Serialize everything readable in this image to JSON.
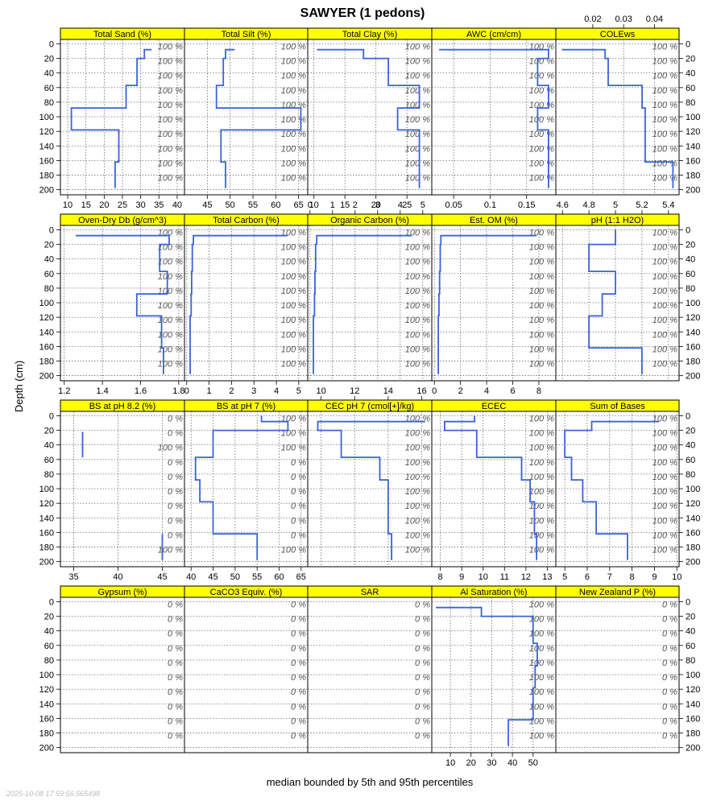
{
  "title": "SAWYER (1 pedons)",
  "ylabel": "Depth (cm)",
  "xlabel": "median bounded by 5th and 95th percentiles",
  "timestamp": "2025-10-08 17:59:56.565498",
  "colors": {
    "strip": "#ffff00",
    "line": "#3a63d8",
    "grid": "#555555",
    "pct_text": "#555555"
  },
  "depth_ticks": [
    0,
    20,
    40,
    60,
    80,
    100,
    120,
    140,
    160,
    180,
    200
  ],
  "pct_depths": [
    0,
    20,
    40,
    60,
    80,
    100,
    120,
    140,
    160,
    180
  ],
  "chart_data": [
    {
      "type": "line",
      "title": "Total Sand (%)",
      "xlim": [
        8,
        42
      ],
      "xticks": [
        10,
        15,
        20,
        25,
        30,
        35,
        40
      ],
      "xtick_axis": "bottom",
      "pct_labels": [
        "100 %",
        "100 %",
        "100 %",
        "100 %",
        "100 %",
        "100 %",
        "100 %",
        "100 %",
        "100 %",
        "100 %"
      ],
      "profile": [
        [
          33,
          8
        ],
        [
          31,
          8
        ],
        [
          31,
          20
        ],
        [
          29,
          20
        ],
        [
          29,
          57
        ],
        [
          26,
          57
        ],
        [
          26,
          88
        ],
        [
          11,
          88
        ],
        [
          11,
          118
        ],
        [
          24,
          118
        ],
        [
          24,
          162
        ],
        [
          23,
          162
        ],
        [
          23,
          198
        ]
      ]
    },
    {
      "type": "line",
      "title": "Total Silt (%)",
      "xlim": [
        40,
        67
      ],
      "xticks": [
        45,
        50,
        55,
        60,
        65
      ],
      "xtick_axis": "bottom",
      "pct_labels": [
        "100 %",
        "100 %",
        "100 %",
        "100 %",
        "100 %",
        "100 %",
        "100 %",
        "100 %",
        "100 %",
        "100 %"
      ],
      "profile": [
        [
          51,
          8
        ],
        [
          49,
          8
        ],
        [
          49,
          20
        ],
        [
          48.5,
          20
        ],
        [
          48.5,
          57
        ],
        [
          47,
          57
        ],
        [
          47,
          88
        ],
        [
          65.5,
          88
        ],
        [
          65.5,
          118
        ],
        [
          48,
          118
        ],
        [
          48,
          162
        ],
        [
          49,
          162
        ],
        [
          49,
          198
        ]
      ]
    },
    {
      "type": "line",
      "title": "Total Clay (%)",
      "xlim": [
        9,
        29
      ],
      "xticks": [
        10,
        15,
        20,
        25
      ],
      "xtick_axis": "bottom",
      "pct_labels": [
        "100 %",
        "100 %",
        "100 %",
        "100 %",
        "100 %",
        "100 %",
        "100 %",
        "100 %",
        "100 %",
        "100 %"
      ],
      "profile": [
        [
          10.5,
          8
        ],
        [
          18,
          8
        ],
        [
          18,
          20
        ],
        [
          22,
          20
        ],
        [
          22,
          57
        ],
        [
          27,
          57
        ],
        [
          27,
          88
        ],
        [
          23.5,
          88
        ],
        [
          23.5,
          118
        ],
        [
          27,
          118
        ],
        [
          27,
          162
        ],
        [
          27,
          162
        ],
        [
          27,
          198
        ]
      ]
    },
    {
      "type": "line",
      "title": "AWC (cm/cm)",
      "xlim": [
        0.02,
        0.19
      ],
      "xticks": [
        0.05,
        0.1,
        0.15
      ],
      "xtick_axis": "bottom",
      "pct_labels": [
        "100 %",
        "100 %",
        "100 %",
        "100 %",
        "100 %",
        "100 %",
        "100 %",
        "100 %",
        "100 %",
        "100 %"
      ],
      "profile": [
        [
          0.03,
          8
        ],
        [
          0.18,
          8
        ],
        [
          0.18,
          20
        ],
        [
          0.165,
          20
        ],
        [
          0.165,
          57
        ],
        [
          0.18,
          57
        ],
        [
          0.18,
          88
        ],
        [
          0.165,
          88
        ],
        [
          0.165,
          118
        ],
        [
          0.18,
          118
        ],
        [
          0.18,
          198
        ]
      ]
    },
    {
      "type": "line",
      "title": "COLEws",
      "xlim": [
        0.008,
        0.048
      ],
      "xticks": [
        0.02,
        0.03,
        0.04
      ],
      "xtick_axis": "top",
      "pct_labels": [
        "100 %",
        "100 %",
        "100 %",
        "100 %",
        "100 %",
        "100 %",
        "100 %",
        "100 %",
        "100 %",
        "100 %"
      ],
      "profile": [
        [
          0.01,
          8
        ],
        [
          0.024,
          8
        ],
        [
          0.024,
          20
        ],
        [
          0.025,
          20
        ],
        [
          0.025,
          57
        ],
        [
          0.036,
          57
        ],
        [
          0.036,
          88
        ],
        [
          0.037,
          88
        ],
        [
          0.037,
          162
        ],
        [
          0.046,
          162
        ],
        [
          0.046,
          198
        ]
      ]
    },
    {
      "type": "line",
      "title": "Oven-Dry Db (g/cm^3)",
      "xlim": [
        1.18,
        1.83
      ],
      "xticks": [
        1.2,
        1.4,
        1.6,
        1.8
      ],
      "xtick_axis": "bottom",
      "pct_labels": [
        "100 %",
        "100 %",
        "100 %",
        "100 %",
        "100 %",
        "100 %",
        "100 %",
        "100 %",
        "100 %",
        "100 %"
      ],
      "profile": [
        [
          1.26,
          8
        ],
        [
          1.75,
          8
        ],
        [
          1.75,
          20
        ],
        [
          1.7,
          20
        ],
        [
          1.7,
          57
        ],
        [
          1.74,
          57
        ],
        [
          1.74,
          88
        ],
        [
          1.58,
          88
        ],
        [
          1.58,
          118
        ],
        [
          1.71,
          118
        ],
        [
          1.71,
          162
        ],
        [
          1.72,
          162
        ],
        [
          1.72,
          198
        ]
      ]
    },
    {
      "type": "line",
      "title": "Total Carbon (%)",
      "xlim": [
        -0.1,
        5.4
      ],
      "xticks": [
        0,
        1,
        2,
        3,
        4,
        5
      ],
      "xtick_axis": "bottom",
      "pct_labels": [
        "100 %",
        "100 %",
        "100 %",
        "100 %",
        "100 %",
        "100 %",
        "100 %",
        "100 %",
        "100 %",
        "100 %"
      ],
      "profile": [
        [
          4.5,
          8
        ],
        [
          0.3,
          8
        ],
        [
          0.3,
          20
        ],
        [
          0.25,
          20
        ],
        [
          0.25,
          57
        ],
        [
          0.22,
          57
        ],
        [
          0.22,
          88
        ],
        [
          0.2,
          88
        ],
        [
          0.2,
          118
        ],
        [
          0.15,
          118
        ],
        [
          0.15,
          198
        ]
      ]
    },
    {
      "type": "line",
      "title": "Organic Carbon (%)",
      "xlim": [
        -0.1,
        5.4
      ],
      "xticks": [
        0,
        1,
        2,
        3,
        4,
        5
      ],
      "xtick_axis": "top",
      "pct_labels": [
        "100 %",
        "100 %",
        "100 %",
        "100 %",
        "100 %",
        "100 %",
        "100 %",
        "100 %",
        "100 %",
        "100 %"
      ],
      "profile": [
        [
          4.5,
          8
        ],
        [
          0.3,
          8
        ],
        [
          0.3,
          20
        ],
        [
          0.25,
          20
        ],
        [
          0.25,
          57
        ],
        [
          0.22,
          57
        ],
        [
          0.22,
          88
        ],
        [
          0.2,
          88
        ],
        [
          0.2,
          118
        ],
        [
          0.15,
          118
        ],
        [
          0.15,
          198
        ]
      ]
    },
    {
      "type": "line",
      "title": "Est. OM (%)",
      "xlim": [
        -0.2,
        9.3
      ],
      "xticks": [
        0,
        2,
        4,
        6,
        8
      ],
      "xtick_axis": "bottom",
      "pct_labels": [
        "100 %",
        "100 %",
        "100 %",
        "100 %",
        "100 %",
        "100 %",
        "100 %",
        "100 %",
        "100 %",
        "100 %"
      ],
      "profile": [
        [
          7.8,
          8
        ],
        [
          0.5,
          8
        ],
        [
          0.5,
          20
        ],
        [
          0.45,
          20
        ],
        [
          0.45,
          57
        ],
        [
          0.4,
          57
        ],
        [
          0.4,
          88
        ],
        [
          0.35,
          88
        ],
        [
          0.35,
          118
        ],
        [
          0.3,
          118
        ],
        [
          0.3,
          198
        ]
      ]
    },
    {
      "type": "line",
      "title": "pH (1:1 H2O)",
      "xlim": [
        4.55,
        5.48
      ],
      "xticks": [
        4.6,
        4.8,
        5.0,
        5.2,
        5.4
      ],
      "xtick_axis": "top",
      "pct_labels": [
        "100 %",
        "100 %",
        "100 %",
        "100 %",
        "100 %",
        "100 %",
        "100 %",
        "100 %",
        "100 %",
        "100 %"
      ],
      "profile": [
        [
          5.0,
          0
        ],
        [
          5.0,
          20
        ],
        [
          4.8,
          20
        ],
        [
          4.8,
          57
        ],
        [
          5.0,
          57
        ],
        [
          5.0,
          88
        ],
        [
          4.9,
          88
        ],
        [
          4.9,
          118
        ],
        [
          4.8,
          118
        ],
        [
          4.8,
          162
        ],
        [
          5.2,
          162
        ],
        [
          5.2,
          198
        ]
      ]
    },
    {
      "type": "line",
      "title": "BS at pH 8.2 (%)",
      "xlim": [
        33.5,
        47.5
      ],
      "xticks": [
        35,
        40,
        45
      ],
      "xtick_axis": "bottom",
      "pct_labels": [
        "0 %",
        "0 %",
        "100 %",
        "0 %",
        "0 %",
        "0 %",
        "0 %",
        "0 %",
        "0 %",
        "100 %"
      ],
      "profile": [
        [
          36,
          22
        ],
        [
          36,
          57
        ]
      ],
      "profile2": [
        [
          45,
          162
        ],
        [
          45,
          198
        ]
      ]
    },
    {
      "type": "line",
      "title": "BS at pH 7 (%)",
      "xlim": [
        38.5,
        66.5
      ],
      "xticks": [
        40,
        45,
        50,
        55,
        60,
        65
      ],
      "xtick_axis": "bottom",
      "pct_labels": [
        "100 %",
        "100 %",
        "100 %",
        "0 %",
        "0 %",
        "0 %",
        "0 %",
        "0 %",
        "0 %",
        "100 %"
      ],
      "profile": [
        [
          56,
          0
        ],
        [
          56,
          8
        ],
        [
          62,
          8
        ],
        [
          62,
          20
        ],
        [
          45,
          20
        ],
        [
          45,
          57
        ],
        [
          41,
          57
        ],
        [
          41,
          88
        ],
        [
          42,
          88
        ],
        [
          42,
          118
        ],
        [
          45,
          118
        ],
        [
          45,
          162
        ],
        [
          55,
          162
        ],
        [
          55,
          198
        ]
      ]
    },
    {
      "type": "line",
      "title": "CEC pH 7 (cmol[+]/kg)",
      "xlim": [
        9.2,
        16.6
      ],
      "xticks": [
        10,
        12,
        14,
        16
      ],
      "xtick_axis": "top",
      "pct_labels": [
        "100 %",
        "100 %",
        "100 %",
        "100 %",
        "100 %",
        "100 %",
        "100 %",
        "100 %",
        "100 %",
        "100 %"
      ],
      "profile": [
        [
          16.2,
          8
        ],
        [
          9.8,
          8
        ],
        [
          9.8,
          20
        ],
        [
          11.2,
          20
        ],
        [
          11.2,
          57
        ],
        [
          13.5,
          57
        ],
        [
          13.5,
          88
        ],
        [
          14,
          88
        ],
        [
          14,
          118
        ],
        [
          14,
          118
        ],
        [
          14,
          162
        ],
        [
          14.2,
          162
        ],
        [
          14.2,
          198
        ]
      ]
    },
    {
      "type": "line",
      "title": "ECEC",
      "xlim": [
        7.6,
        13.4
      ],
      "xticks": [
        8,
        9,
        10,
        11,
        12,
        13
      ],
      "xtick_axis": "bottom",
      "pct_labels": [
        "100 %",
        "100 %",
        "100 %",
        "100 %",
        "100 %",
        "100 %",
        "100 %",
        "100 %",
        "100 %",
        "100 %"
      ],
      "profile": [
        [
          9.6,
          0
        ],
        [
          9.6,
          8
        ],
        [
          8.2,
          8
        ],
        [
          8.2,
          20
        ],
        [
          9.7,
          20
        ],
        [
          9.7,
          57
        ],
        [
          11.8,
          57
        ],
        [
          11.8,
          88
        ],
        [
          12.2,
          88
        ],
        [
          12.2,
          118
        ],
        [
          12.4,
          118
        ],
        [
          12.4,
          162
        ],
        [
          12.5,
          162
        ],
        [
          12.5,
          198
        ]
      ]
    },
    {
      "type": "line",
      "title": "Sum of Bases",
      "xlim": [
        4.6,
        10.1
      ],
      "xticks": [
        5,
        6,
        7,
        8,
        9,
        10
      ],
      "xtick_axis": "bottom",
      "pct_labels": [
        "100 %",
        "100 %",
        "100 %",
        "100 %",
        "100 %",
        "100 %",
        "100 %",
        "100 %",
        "100 %",
        "100 %"
      ],
      "profile": [
        [
          9.2,
          8
        ],
        [
          6.2,
          8
        ],
        [
          6.2,
          20
        ],
        [
          5.0,
          20
        ],
        [
          5.0,
          57
        ],
        [
          5.3,
          57
        ],
        [
          5.3,
          88
        ],
        [
          5.8,
          88
        ],
        [
          5.8,
          118
        ],
        [
          6.4,
          118
        ],
        [
          6.4,
          162
        ],
        [
          7.8,
          162
        ],
        [
          7.8,
          198
        ]
      ]
    },
    {
      "type": "line",
      "title": "Gypsum (%)",
      "xlim": [
        0,
        1
      ],
      "xticks": [],
      "xtick_axis": "bottom",
      "pct_labels": [
        "0 %",
        "0 %",
        "0 %",
        "0 %",
        "0 %",
        "0 %",
        "0 %",
        "0 %",
        "0 %",
        "0 %"
      ],
      "profile": []
    },
    {
      "type": "line",
      "title": "CaCO3 Equiv. (%)",
      "xlim": [
        0,
        1
      ],
      "xticks": [],
      "xtick_axis": "bottom",
      "pct_labels": [
        "0 %",
        "0 %",
        "0 %",
        "0 %",
        "0 %",
        "0 %",
        "0 %",
        "0 %",
        "0 %",
        "0 %"
      ],
      "profile": []
    },
    {
      "type": "line",
      "title": "SAR",
      "xlim": [
        0,
        1
      ],
      "xticks": [],
      "xtick_axis": "bottom",
      "pct_labels": [
        "0 %",
        "0 %",
        "0 %",
        "0 %",
        "0 %",
        "0 %",
        "0 %",
        "0 %",
        "0 %",
        "0 %"
      ],
      "profile": []
    },
    {
      "type": "line",
      "title": "Al Saturation (%)",
      "xlim": [
        1,
        61
      ],
      "xticks": [
        10,
        20,
        30,
        40,
        50
      ],
      "xtick_axis": "bottom",
      "pct_labels": [
        "100 %",
        "100 %",
        "100 %",
        "100 %",
        "100 %",
        "100 %",
        "100 %",
        "100 %",
        "100 %",
        "100 %"
      ],
      "profile": [
        [
          3,
          8
        ],
        [
          25,
          8
        ],
        [
          25,
          20
        ],
        [
          50,
          20
        ],
        [
          50,
          57
        ],
        [
          52,
          57
        ],
        [
          52,
          88
        ],
        [
          51,
          88
        ],
        [
          51,
          118
        ],
        [
          50,
          118
        ],
        [
          50,
          162
        ],
        [
          38,
          162
        ],
        [
          38,
          198
        ]
      ]
    },
    {
      "type": "line",
      "title": "New Zealand P (%)",
      "xlim": [
        0,
        1
      ],
      "xticks": [],
      "xtick_axis": "top",
      "pct_labels": [
        "0 %",
        "0 %",
        "0 %",
        "0 %",
        "0 %",
        "0 %",
        "0 %",
        "0 %",
        "0 %",
        "0 %"
      ],
      "profile": []
    }
  ]
}
